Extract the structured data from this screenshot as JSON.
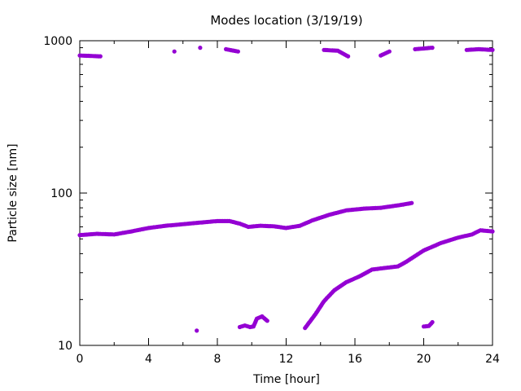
{
  "chart_data": {
    "type": "scatter",
    "title": "Modes location (3/19/19)",
    "xlabel": "Time [hour]",
    "ylabel": "Particle size [nm]",
    "xlim": [
      0,
      24
    ],
    "ylim": [
      10,
      1000
    ],
    "yscale": "log",
    "x_ticks": [
      0,
      4,
      8,
      12,
      16,
      20,
      24
    ],
    "y_ticks": [
      10,
      100,
      1000
    ],
    "x_tick_labels": [
      "0",
      "4",
      "8",
      "12",
      "16",
      "20",
      "24"
    ],
    "y_tick_labels": [
      "10",
      "100",
      "1000"
    ],
    "grid": false,
    "legend": "none",
    "marker_color": "#9400D3",
    "series": [
      {
        "points": [
          [
            0.0,
            800
          ],
          [
            1.2,
            790
          ],
          [
            5.5,
            850
          ],
          [
            7.0,
            900
          ],
          [
            8.5,
            880
          ],
          [
            9.2,
            850
          ],
          [
            14.2,
            870
          ],
          [
            15.0,
            860
          ],
          [
            15.6,
            790
          ],
          [
            17.5,
            800
          ],
          [
            18.0,
            850
          ],
          [
            19.5,
            880
          ],
          [
            20.5,
            900
          ],
          [
            22.5,
            870
          ],
          [
            23.2,
            880
          ],
          [
            24.0,
            870
          ]
        ]
      },
      {
        "points": [
          [
            0.0,
            53
          ],
          [
            1.0,
            54
          ],
          [
            2.0,
            53.5
          ],
          [
            3.0,
            56
          ],
          [
            4.0,
            59
          ],
          [
            5.0,
            61
          ],
          [
            6.0,
            62.5
          ],
          [
            7.0,
            64
          ],
          [
            8.0,
            65.5
          ],
          [
            8.7,
            65.5
          ],
          [
            9.3,
            63
          ],
          [
            9.8,
            60
          ],
          [
            10.5,
            61
          ],
          [
            11.3,
            60.5
          ],
          [
            12.0,
            59
          ],
          [
            12.8,
            61
          ],
          [
            13.5,
            66
          ],
          [
            14.5,
            72
          ],
          [
            15.5,
            77
          ],
          [
            16.5,
            79
          ],
          [
            17.5,
            80
          ],
          [
            18.5,
            83
          ],
          [
            19.3,
            86
          ]
        ]
      },
      {
        "points": [
          [
            13.1,
            13
          ],
          [
            13.7,
            16
          ],
          [
            14.2,
            19.5
          ],
          [
            14.8,
            23
          ],
          [
            15.5,
            26
          ],
          [
            16.3,
            28.5
          ],
          [
            17.0,
            31.5
          ],
          [
            18.0,
            32.5
          ],
          [
            18.5,
            33
          ],
          [
            19.0,
            35.5
          ],
          [
            20.0,
            42
          ],
          [
            21.0,
            47
          ],
          [
            22.0,
            51
          ],
          [
            22.8,
            53.5
          ],
          [
            23.3,
            57
          ],
          [
            24.0,
            56
          ]
        ]
      },
      {
        "points": [
          [
            6.8,
            12.5
          ],
          [
            9.3,
            13.2
          ],
          [
            9.6,
            13.5
          ],
          [
            9.9,
            13.2
          ],
          [
            10.1,
            13.3
          ],
          [
            10.3,
            15
          ],
          [
            10.6,
            15.5
          ],
          [
            10.9,
            14.5
          ],
          [
            20.0,
            13.3
          ],
          [
            20.3,
            13.4
          ],
          [
            20.5,
            14.2
          ]
        ]
      }
    ]
  }
}
